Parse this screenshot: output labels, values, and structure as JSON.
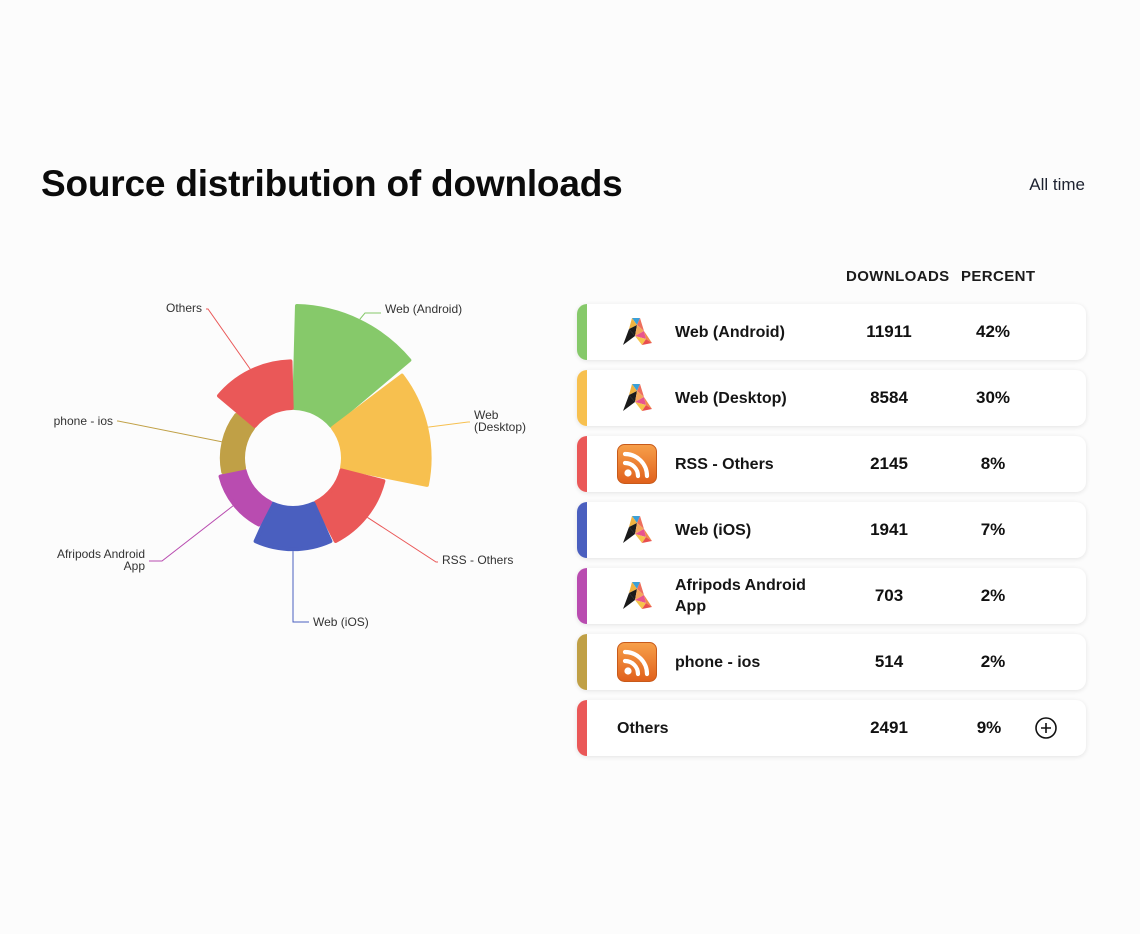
{
  "header": {
    "title": "Source distribution of downloads",
    "period": "All time"
  },
  "table": {
    "col_downloads": "DOWNLOADS",
    "col_percent": "PERCENT",
    "rows": [
      {
        "name": "Web (Android)",
        "downloads": "11911",
        "percent": "42%",
        "color": "#86c96a",
        "icon": "afripods-logo-icon"
      },
      {
        "name": "Web (Desktop)",
        "downloads": "8584",
        "percent": "30%",
        "color": "#f7c04f",
        "icon": "afripods-logo-icon"
      },
      {
        "name": "RSS - Others",
        "downloads": "2145",
        "percent": "8%",
        "color": "#ea5858",
        "icon": "rss-icon"
      },
      {
        "name": "Web (iOS)",
        "downloads": "1941",
        "percent": "7%",
        "color": "#4a5fbf",
        "icon": "afripods-logo-icon"
      },
      {
        "name": "Afripods Android App",
        "downloads": "703",
        "percent": "2%",
        "color": "#b94cb0",
        "icon": "afripods-logo-icon"
      },
      {
        "name": "phone - ios",
        "downloads": "514",
        "percent": "2%",
        "color": "#c0a046",
        "icon": "rss-icon"
      },
      {
        "name": "Others",
        "downloads": "2491",
        "percent": "9%",
        "color": "#ea5858",
        "icon": null
      }
    ]
  },
  "chart_data": {
    "type": "pie",
    "subtype": "nightingale-rose",
    "title": "Source distribution of downloads",
    "labels": [
      "Web (Android)",
      "Web (Desktop)",
      "RSS - Others",
      "Web (iOS)",
      "Afripods Android App",
      "phone - ios",
      "Others"
    ],
    "values": [
      11911,
      8584,
      2145,
      1941,
      703,
      514,
      2491
    ],
    "colors": [
      "#86c96a",
      "#f7c04f",
      "#ea5858",
      "#4a5fbf",
      "#b94cb0",
      "#c0a046",
      "#ea5858"
    ],
    "chart_label_lines": [
      [
        "Web (Android)"
      ],
      [
        "Web",
        "(Desktop)"
      ],
      [
        "RSS - Others"
      ],
      [
        "Web (iOS)"
      ],
      [
        "Afripods Android",
        "App"
      ],
      [
        "phone - ios"
      ],
      [
        "Others"
      ]
    ]
  }
}
